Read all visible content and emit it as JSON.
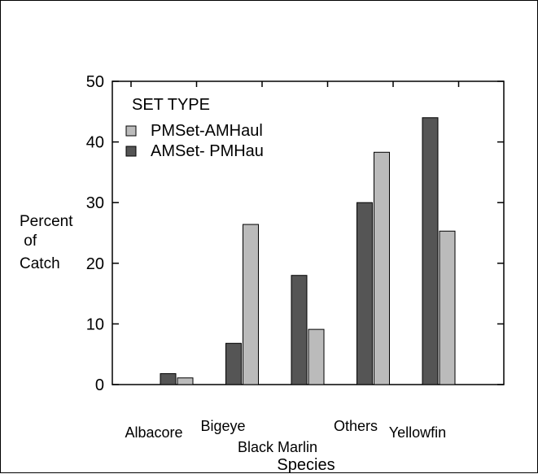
{
  "chart_data": {
    "type": "bar",
    "title": "",
    "xlabel": "Species",
    "ylabel": "Percent of Catch",
    "ylabel_lines": [
      "Percent",
      " of",
      "Catch"
    ],
    "ylim": [
      0,
      50
    ],
    "yticks": [
      0,
      10,
      20,
      30,
      40,
      50
    ],
    "grid": false,
    "legend_title": "SET TYPE",
    "legend_placement": "top-left",
    "categories": [
      "Albacore",
      "Bigeye",
      "Black Marlin",
      "Others",
      "Yellowfin"
    ],
    "series": [
      {
        "name": "AMSet- PMHau",
        "color": "#555555",
        "values": [
          1.8,
          6.8,
          18.0,
          30.0,
          44.0
        ]
      },
      {
        "name": "PMSet-AMHaul",
        "color": "#bbbbbb",
        "values": [
          1.1,
          26.4,
          9.1,
          38.3,
          25.3
        ]
      }
    ],
    "legend_order": [
      1,
      0
    ]
  }
}
